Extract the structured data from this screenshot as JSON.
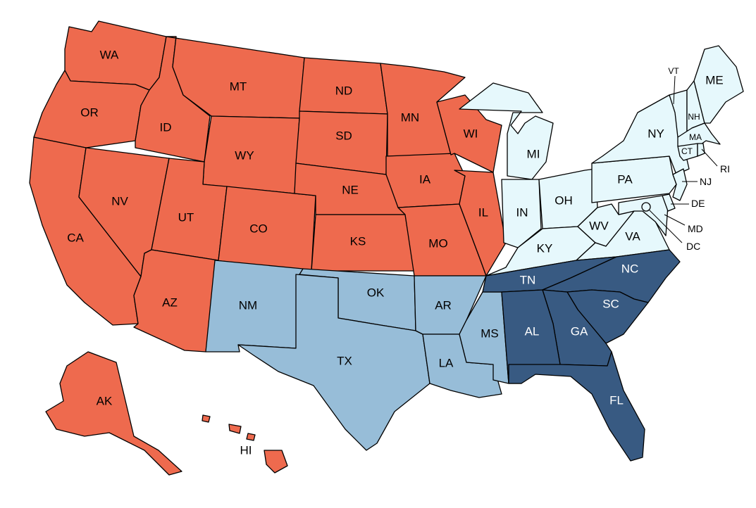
{
  "colors": {
    "west": "#EE6A4E",
    "central_south": "#97BDD8",
    "east": "#E6F8FC",
    "southeast": "#385A82"
  },
  "labels": {
    "WA": "WA",
    "OR": "OR",
    "CA": "CA",
    "ID": "ID",
    "NV": "NV",
    "MT": "MT",
    "WY": "WY",
    "UT": "UT",
    "AZ": "AZ",
    "CO": "CO",
    "ND": "ND",
    "SD": "SD",
    "NE": "NE",
    "KS": "KS",
    "MN": "MN",
    "IA": "IA",
    "MO": "MO",
    "WI": "WI",
    "IL": "IL",
    "AK": "AK",
    "HI": "HI",
    "NM": "NM",
    "TX": "TX",
    "OK": "OK",
    "AR": "AR",
    "LA": "LA",
    "MS": "MS",
    "MI": "MI",
    "IN": "IN",
    "OH": "OH",
    "KY": "KY",
    "WV": "WV",
    "VA": "VA",
    "PA": "PA",
    "NY": "NY",
    "ME": "ME",
    "VT": "VT",
    "NH": "NH",
    "MA": "MA",
    "CT": "CT",
    "RI": "RI",
    "NJ": "NJ",
    "DE": "DE",
    "MD": "MD",
    "DC": "DC",
    "TN": "TN",
    "NC": "NC",
    "SC": "SC",
    "GA": "GA",
    "AL": "AL",
    "FL": "FL"
  },
  "state_groups": {
    "west": [
      "WA",
      "OR",
      "CA",
      "ID",
      "NV",
      "MT",
      "WY",
      "UT",
      "AZ",
      "CO",
      "ND",
      "SD",
      "NE",
      "KS",
      "MN",
      "IA",
      "MO",
      "WI",
      "IL",
      "AK",
      "HI"
    ],
    "central_south": [
      "NM",
      "TX",
      "OK",
      "AR",
      "LA",
      "MS"
    ],
    "east": [
      "MI",
      "IN",
      "OH",
      "KY",
      "WV",
      "VA",
      "PA",
      "NY",
      "ME",
      "VT",
      "NH",
      "MA",
      "CT",
      "RI",
      "NJ",
      "DE",
      "MD",
      "DC"
    ],
    "southeast": [
      "TN",
      "NC",
      "SC",
      "GA",
      "AL",
      "FL"
    ]
  }
}
